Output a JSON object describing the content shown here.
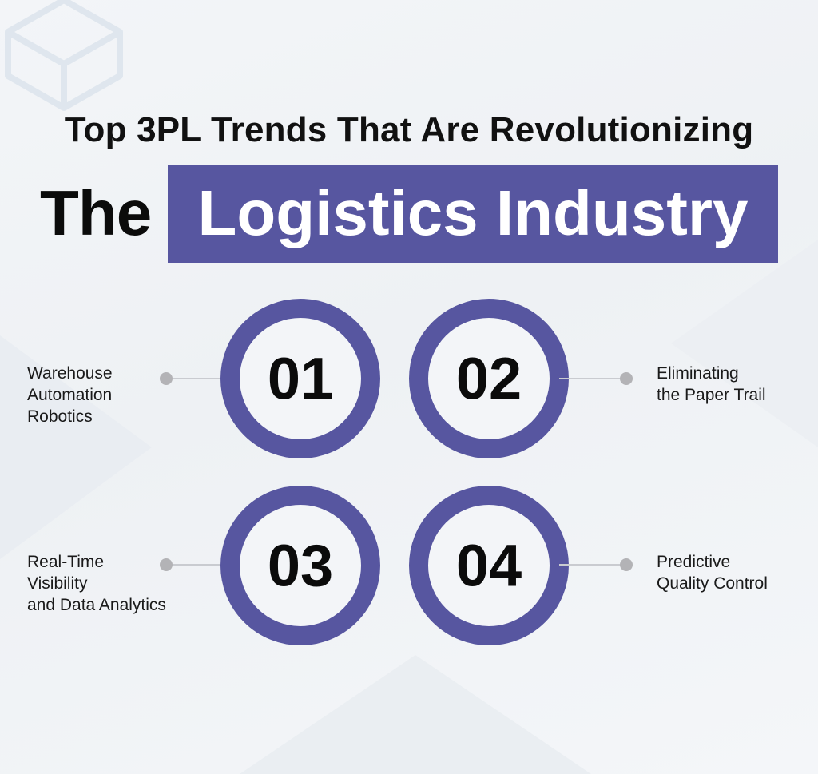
{
  "title": {
    "line1": "Top 3PL Trends That Are Revolutionizing",
    "line2_plain": "The",
    "line2_highlight": "Logistics Industry"
  },
  "colors": {
    "accent": "#5756a0",
    "background": "#f3f5f8",
    "text": "#111111",
    "connector_dot": "#b3b3b6"
  },
  "trends": [
    {
      "number": "01",
      "label": "Warehouse\nAutomation\nRobotics"
    },
    {
      "number": "02",
      "label": "Eliminating\nthe Paper Trail"
    },
    {
      "number": "03",
      "label": "Real-Time\nVisibility\nand Data Analytics"
    },
    {
      "number": "04",
      "label": "Predictive\nQuality Control"
    }
  ],
  "decoration": {
    "icon": "cube-outline-icon"
  }
}
